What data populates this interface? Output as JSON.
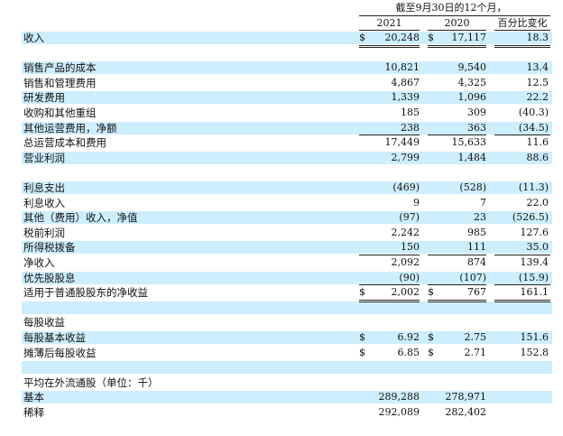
{
  "header": {
    "period": "截至9月30日的12个月，",
    "year_2021": "2021",
    "year_2020": "2020",
    "change": "百分比变化"
  },
  "rows": [
    {
      "label": "收入",
      "cur1": "$",
      "v2021": "20,248",
      "cur2": "$",
      "v2020": "17,117",
      "pct": "18.3"
    },
    {
      "label": "",
      "v2021": "",
      "v2020": "",
      "pct": ""
    },
    {
      "label": "销售产品的成本",
      "v2021": "10,821",
      "v2020": "9,540",
      "pct": "13.4"
    },
    {
      "label": "销售和管理费用",
      "v2021": "4,867",
      "v2020": "4,325",
      "pct": "12.5"
    },
    {
      "label": "研发费用",
      "v2021": "1,339",
      "v2020": "1,096",
      "pct": "22.2"
    },
    {
      "label": "收购和其他重组",
      "v2021": "185",
      "v2020": "309",
      "pct": "(40.3)"
    },
    {
      "label": "其他运营费用，净额",
      "v2021": "238",
      "v2020": "363",
      "pct": "(34.5)"
    },
    {
      "label": "总运营成本和费用",
      "v2021": "17,449",
      "v2020": "15,633",
      "pct": "11.6"
    },
    {
      "label": "营业利润",
      "v2021": "2,799",
      "v2020": "1,484",
      "pct": "88.6"
    },
    {
      "label": "",
      "v2021": "",
      "v2020": "",
      "pct": ""
    },
    {
      "label": "利息支出",
      "v2021": "(469)",
      "v2020": "(528)",
      "pct": "(11.3)"
    },
    {
      "label": "利息收入",
      "v2021": "9",
      "v2020": "7",
      "pct": "22.0"
    },
    {
      "label": "其他（费用）收入，净值",
      "v2021": "(97)",
      "v2020": "23",
      "pct": "(526.5)"
    },
    {
      "label": "税前利润",
      "v2021": "2,242",
      "v2020": "985",
      "pct": "127.6"
    },
    {
      "label": "所得税拨备",
      "v2021": "150",
      "v2020": "111",
      "pct": "35.0"
    },
    {
      "label": "净收入",
      "v2021": "2,092",
      "v2020": "874",
      "pct": "139.4"
    },
    {
      "label": "优先股股息",
      "v2021": "(90)",
      "v2020": "(107)",
      "pct": "(15.9)"
    },
    {
      "label": "适用于普通股股东的净收益",
      "cur1": "$",
      "v2021": "2,002",
      "cur2": "$",
      "v2020": "767",
      "pct": "161.1"
    },
    {
      "label": "",
      "v2021": "",
      "v2020": "",
      "pct": ""
    },
    {
      "label": "每股收益",
      "v2021": "",
      "v2020": "",
      "pct": ""
    },
    {
      "label": "每股基本收益",
      "cur1": "$",
      "v2021": "6.92",
      "cur2": "$",
      "v2020": "2.75",
      "pct": "151.6"
    },
    {
      "label": "摊薄后每股收益",
      "cur1": "$",
      "v2021": "6.85",
      "cur2": "$",
      "v2020": "2.71",
      "pct": "152.8"
    },
    {
      "label": "",
      "v2021": "",
      "v2020": "",
      "pct": ""
    },
    {
      "label": "平均在外流通股（单位：千）",
      "v2021": "",
      "v2020": "",
      "pct": ""
    },
    {
      "label": "基本",
      "v2021": "289,288",
      "v2020": "278,971",
      "pct": ""
    },
    {
      "label": "稀释",
      "v2021": "292,089",
      "v2020": "282,402",
      "pct": ""
    }
  ]
}
